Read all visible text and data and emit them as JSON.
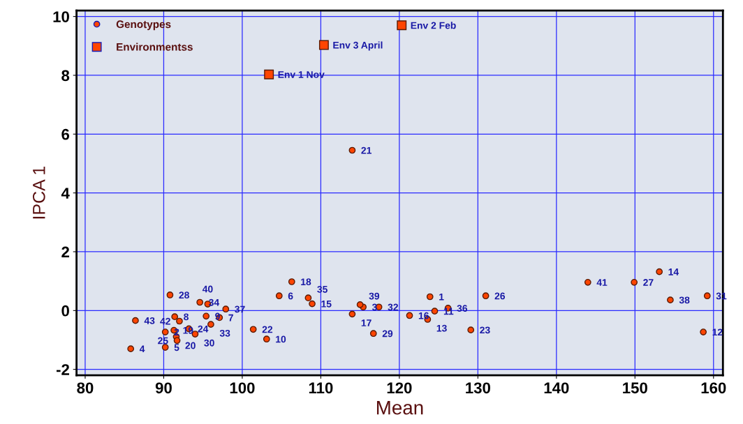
{
  "chart_data": {
    "type": "scatter",
    "xlabel": "Mean",
    "ylabel": "IPCA 1",
    "xlim": [
      78.9,
      161.2
    ],
    "ylim": [
      -2.2,
      10.2
    ],
    "xticks": [
      80,
      90,
      100,
      110,
      120,
      130,
      140,
      150,
      160
    ],
    "yticks": [
      -2,
      0,
      2,
      4,
      6,
      8,
      10
    ],
    "grid": true,
    "legend": "top left",
    "series": [
      {
        "name": "Genotypes",
        "color": "#ff4500",
        "marker": "circle",
        "x": [
          123.9,
          90.2,
          115.4,
          85.8,
          90.2,
          104.7,
          97.1,
          91.4,
          95.4,
          103.1,
          124.5,
          158.7,
          123.6,
          153.1,
          108.9,
          121.3,
          114.0,
          106.3,
          91.3,
          91.6,
          114.0,
          101.4,
          129.1,
          93.2,
          91.7,
          131.0,
          149.9,
          90.8,
          116.7,
          94.0,
          159.2,
          117.4,
          96.0,
          94.6,
          108.4,
          126.2,
          97.9,
          154.5,
          115.0,
          95.6,
          144.0,
          92.0,
          86.4
        ],
        "values": [
          0.47,
          -0.73,
          0.12,
          -1.3,
          -1.25,
          0.5,
          -0.24,
          -0.21,
          -0.19,
          -0.97,
          -0.02,
          -0.73,
          -0.3,
          1.32,
          0.23,
          -0.17,
          -0.12,
          0.98,
          -0.67,
          -0.89,
          5.45,
          -0.64,
          -0.66,
          -0.62,
          -1.02,
          0.5,
          0.96,
          0.53,
          -0.78,
          -0.8,
          0.5,
          0.12,
          -0.47,
          0.28,
          0.43,
          0.08,
          0.05,
          0.36,
          0.2,
          0.22,
          0.96,
          -0.36,
          -0.34
        ]
      },
      {
        "name": "Environmentss",
        "color": "#ff4500",
        "marker": "square",
        "x": [
          103.4,
          120.3,
          110.4
        ],
        "values": [
          8.03,
          9.7,
          9.03
        ]
      }
    ],
    "annotations": [
      {
        "text": "1",
        "x": 123.9,
        "y": 0.47
      },
      {
        "text": "2",
        "x": 90.2,
        "y": -0.73
      },
      {
        "text": "3",
        "x": 115.4,
        "y": 0.12
      },
      {
        "text": "4",
        "x": 85.8,
        "y": -1.3
      },
      {
        "text": "5",
        "x": 90.2,
        "y": -1.25
      },
      {
        "text": "6",
        "x": 104.7,
        "y": 0.5
      },
      {
        "text": "7",
        "x": 97.1,
        "y": -0.24
      },
      {
        "text": "8",
        "x": 91.4,
        "y": -0.21
      },
      {
        "text": "9",
        "x": 95.4,
        "y": -0.19
      },
      {
        "text": "10",
        "x": 103.1,
        "y": -0.97
      },
      {
        "text": "11",
        "x": 124.5,
        "y": -0.02
      },
      {
        "text": "12",
        "x": 158.7,
        "y": -0.73
      },
      {
        "text": "13",
        "x": 123.6,
        "y": -0.3
      },
      {
        "text": "14",
        "x": 153.1,
        "y": 1.32
      },
      {
        "text": "15",
        "x": 108.9,
        "y": 0.23
      },
      {
        "text": "16",
        "x": 121.3,
        "y": -0.17
      },
      {
        "text": "17",
        "x": 114.0,
        "y": -0.12
      },
      {
        "text": "18",
        "x": 106.3,
        "y": 0.98
      },
      {
        "text": "19",
        "x": 91.3,
        "y": -0.67
      },
      {
        "text": "20",
        "x": 91.6,
        "y": -0.89
      },
      {
        "text": "21",
        "x": 114.0,
        "y": 5.45
      },
      {
        "text": "22",
        "x": 101.4,
        "y": -0.64
      },
      {
        "text": "23",
        "x": 129.1,
        "y": -0.66
      },
      {
        "text": "24",
        "x": 93.2,
        "y": -0.62
      },
      {
        "text": "25",
        "x": 91.7,
        "y": -1.02
      },
      {
        "text": "26",
        "x": 131.0,
        "y": 0.5
      },
      {
        "text": "27",
        "x": 149.9,
        "y": 0.96
      },
      {
        "text": "28",
        "x": 90.8,
        "y": 0.53
      },
      {
        "text": "29",
        "x": 116.7,
        "y": -0.78
      },
      {
        "text": "30",
        "x": 94.0,
        "y": -0.8
      },
      {
        "text": "31",
        "x": 159.2,
        "y": 0.5
      },
      {
        "text": "32",
        "x": 117.4,
        "y": 0.12
      },
      {
        "text": "33",
        "x": 96.0,
        "y": -0.47
      },
      {
        "text": "34",
        "x": 94.6,
        "y": 0.28
      },
      {
        "text": "35",
        "x": 108.4,
        "y": 0.43
      },
      {
        "text": "36",
        "x": 126.2,
        "y": 0.08
      },
      {
        "text": "37",
        "x": 97.9,
        "y": 0.05
      },
      {
        "text": "38",
        "x": 154.5,
        "y": 0.36
      },
      {
        "text": "39",
        "x": 115.0,
        "y": 0.2
      },
      {
        "text": "40",
        "x": 95.6,
        "y": 0.22
      },
      {
        "text": "41",
        "x": 144.0,
        "y": 0.96
      },
      {
        "text": "42",
        "x": 92.0,
        "y": -0.36
      },
      {
        "text": "43",
        "x": 86.4,
        "y": -0.34
      },
      {
        "text": "Env 1 Nov",
        "x": 103.4,
        "y": 8.03
      },
      {
        "text": "Env 2 Feb",
        "x": 120.3,
        "y": 9.7
      },
      {
        "text": "Env 3 April",
        "x": 110.4,
        "y": 9.03
      }
    ]
  }
}
